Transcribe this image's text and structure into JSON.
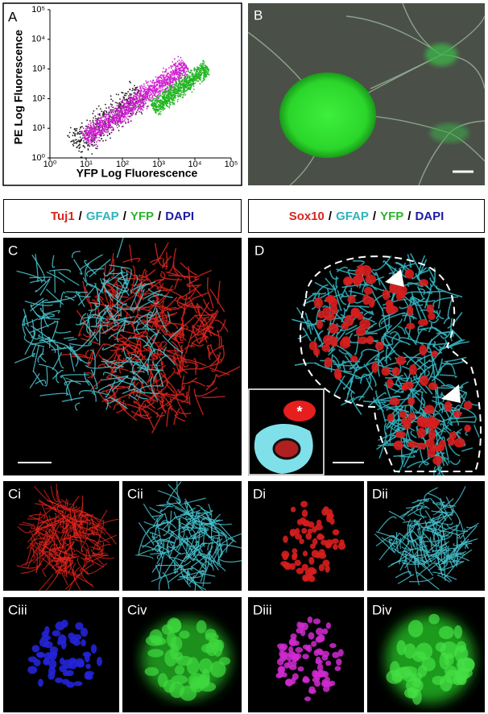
{
  "panels": {
    "A": {
      "label": "A",
      "x_axis_label": "YFP Log Fluorescence",
      "y_axis_label": "PE Log Fluorescence",
      "x_ticks": [
        {
          "value": 1,
          "label": "10⁰"
        },
        {
          "value": 10,
          "label": "10¹"
        },
        {
          "value": 100,
          "label": "10²"
        },
        {
          "value": 1000,
          "label": "10³"
        },
        {
          "value": 10000,
          "label": "10⁴"
        },
        {
          "value": 100000,
          "label": "10⁵"
        }
      ],
      "y_ticks": [
        {
          "value": 1,
          "label": "10⁰"
        },
        {
          "value": 10,
          "label": "10¹"
        },
        {
          "value": 100,
          "label": "10²"
        },
        {
          "value": 1000,
          "label": "10³"
        },
        {
          "value": 10000,
          "label": "10⁴"
        },
        {
          "value": 100000,
          "label": "10⁵"
        }
      ]
    },
    "B": {
      "label": "B"
    },
    "C": {
      "label": "C"
    },
    "D": {
      "label": "D",
      "inset_mark": "*"
    },
    "Ci": {
      "label": "Ci"
    },
    "Cii": {
      "label": "Cii"
    },
    "Ciii": {
      "label": "Ciii"
    },
    "Civ": {
      "label": "Civ"
    },
    "Di": {
      "label": "Di"
    },
    "Dii": {
      "label": "Dii"
    },
    "Diii": {
      "label": "Diii"
    },
    "Div": {
      "label": "Div"
    }
  },
  "legends": [
    {
      "separator": "/",
      "items": [
        {
          "text": "Tuj1",
          "color": "#d8251d"
        },
        {
          "text": "GFAP",
          "color": "#2fb3bd"
        },
        {
          "text": "YFP",
          "color": "#2eb12e"
        },
        {
          "text": "DAPI",
          "color": "#1c1ca6"
        }
      ]
    },
    {
      "separator": "/",
      "items": [
        {
          "text": "Sox10",
          "color": "#d8251d"
        },
        {
          "text": "GFAP",
          "color": "#2fb3bd"
        },
        {
          "text": "YFP",
          "color": "#2eb12e"
        },
        {
          "text": "DAPI",
          "color": "#1c1ca6"
        }
      ]
    }
  ]
}
